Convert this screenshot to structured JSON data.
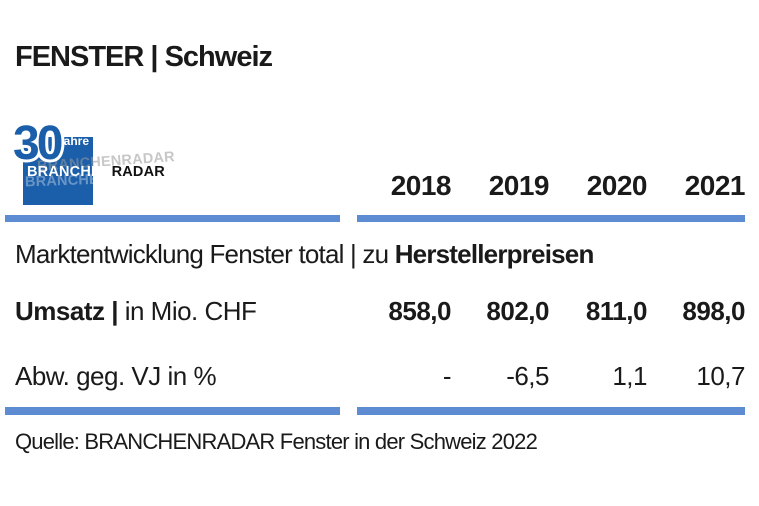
{
  "page": {
    "title": "FENSTER | Schweiz",
    "source": "Quelle: BRANCHENRADAR Fenster in der Schweiz 2022"
  },
  "logo": {
    "years_number": "30",
    "years_label": "Jahre",
    "brand_white": "BRANCHEN",
    "brand_black": "RADAR",
    "ghost_text": "BRANCHENRADAR"
  },
  "subtitle": {
    "regular": "Marktentwicklung Fenster total | zu ",
    "bold": "Herstellerpreisen"
  },
  "table": {
    "columns": [
      "2018",
      "2019",
      "2020",
      "2021"
    ],
    "umsatz": {
      "label_bold": "Umsatz | ",
      "label_regular": "in Mio. CHF",
      "values": [
        "858,0",
        "802,0",
        "811,0",
        "898,0"
      ]
    },
    "abw": {
      "label": "Abw. geg. VJ in %",
      "values": [
        "-",
        "-6,5",
        "1,1",
        "10,7"
      ]
    }
  },
  "colors": {
    "logo_blue": "#1b5ea9",
    "bar_blue": "#5d8cd2",
    "text": "#1a1a1a"
  },
  "chart_data": {
    "type": "table",
    "title": "FENSTER | Schweiz",
    "subtitle": "Marktentwicklung Fenster total | zu Herstellerpreisen",
    "categories": [
      "2018",
      "2019",
      "2020",
      "2021"
    ],
    "series": [
      {
        "name": "Umsatz | in Mio. CHF",
        "values": [
          858.0,
          802.0,
          811.0,
          898.0
        ]
      },
      {
        "name": "Abw. geg. VJ in %",
        "values": [
          null,
          -6.5,
          1.1,
          10.7
        ]
      }
    ],
    "source": "Quelle: BRANCHENRADAR Fenster in der Schweiz 2022"
  }
}
